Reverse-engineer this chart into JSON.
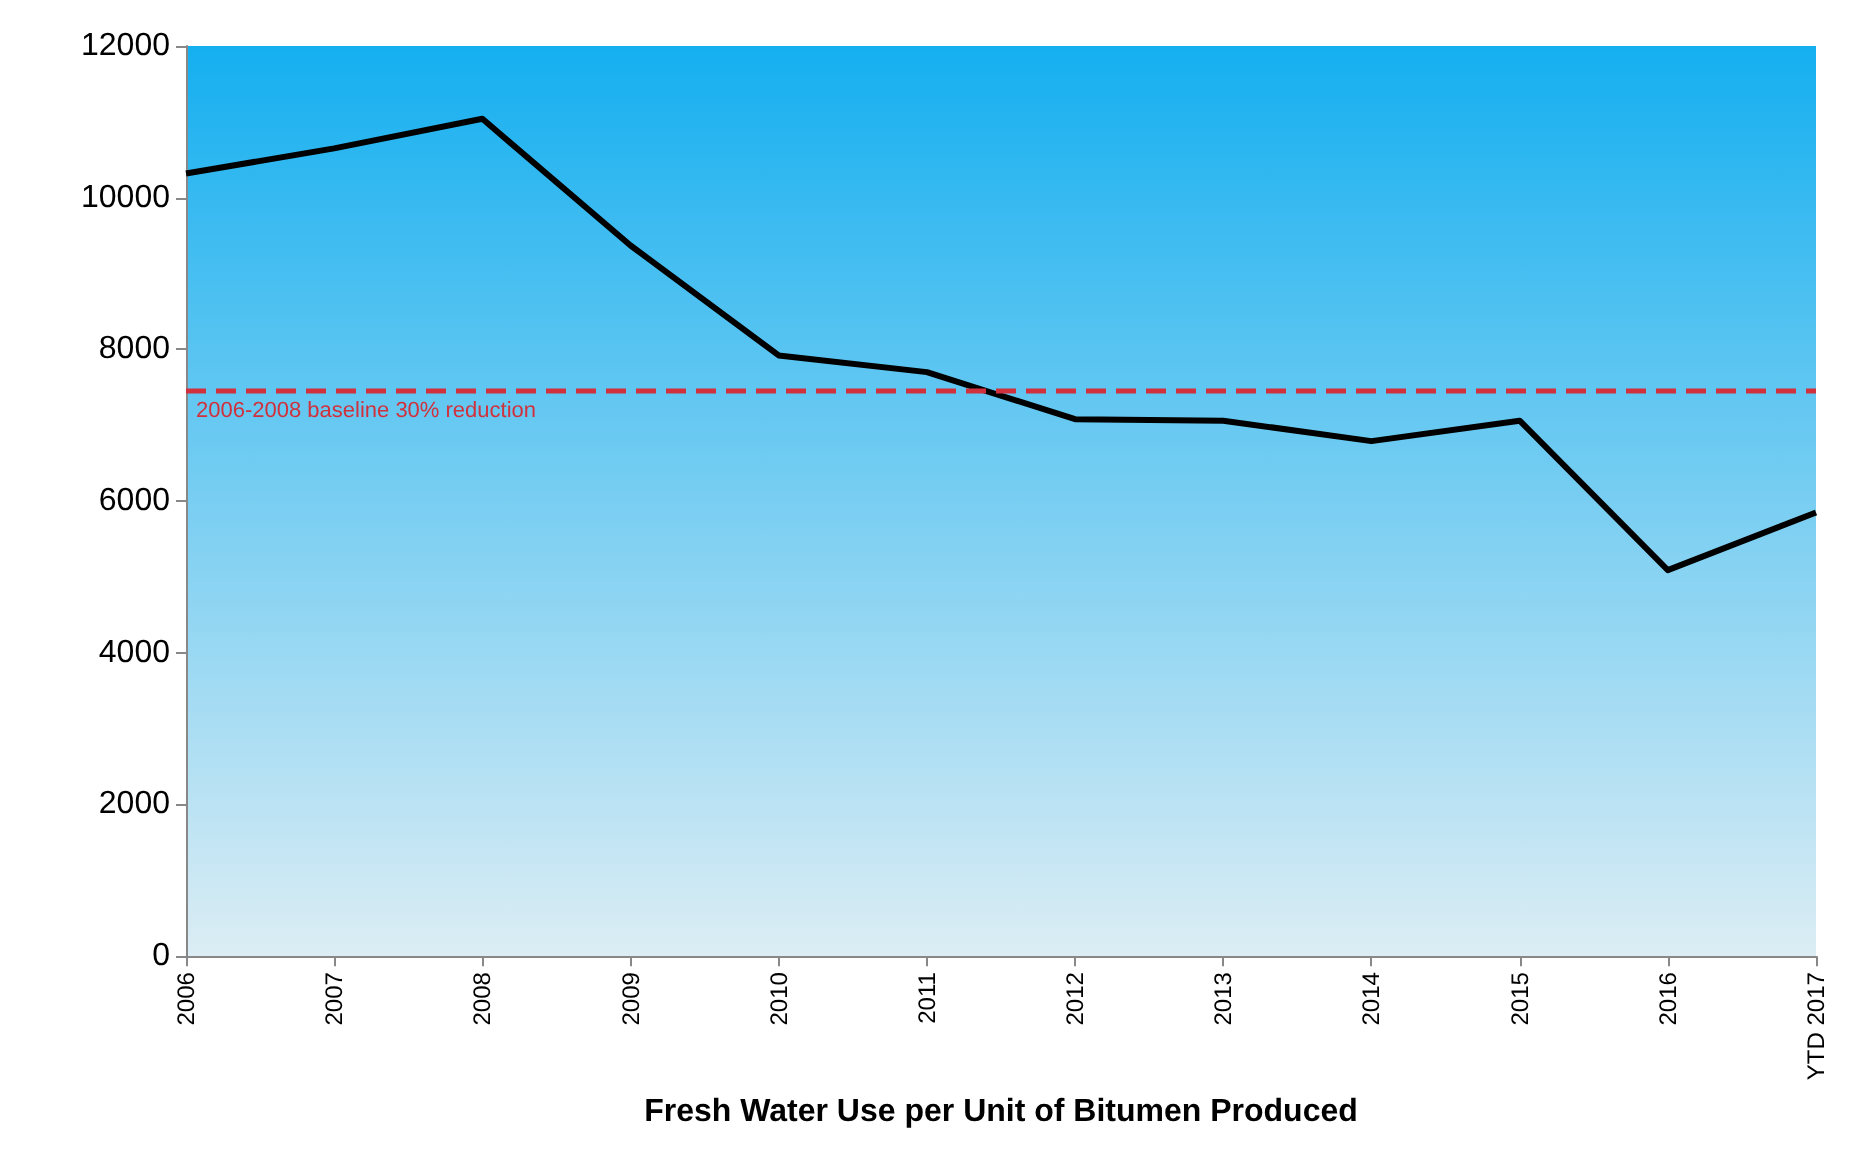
{
  "chart_data": {
    "type": "line",
    "xlabel": "Fresh Water Use per Unit of Bitumen Produced",
    "categories": [
      "2006",
      "2007",
      "2008",
      "2009",
      "2010",
      "2011",
      "2012",
      "2013",
      "2014",
      "2015",
      "2016",
      "YTD 2017"
    ],
    "series": [
      {
        "color": "#000000",
        "values": [
          10320,
          10650,
          11040,
          9370,
          7920,
          7700,
          7080,
          7060,
          6790,
          7060,
          5090,
          5850
        ]
      }
    ],
    "ylim": [
      0,
      12000
    ],
    "yticks": [
      0,
      2000,
      4000,
      6000,
      8000,
      10000,
      12000
    ],
    "ref_lines": [
      {
        "axis": "y",
        "value": 7470,
        "label": "2006-2008 baseline 30% reduction",
        "color": "#d0313c",
        "line_style": "dashed"
      }
    ],
    "grid": false,
    "marker": "none",
    "line_style": "solid"
  }
}
